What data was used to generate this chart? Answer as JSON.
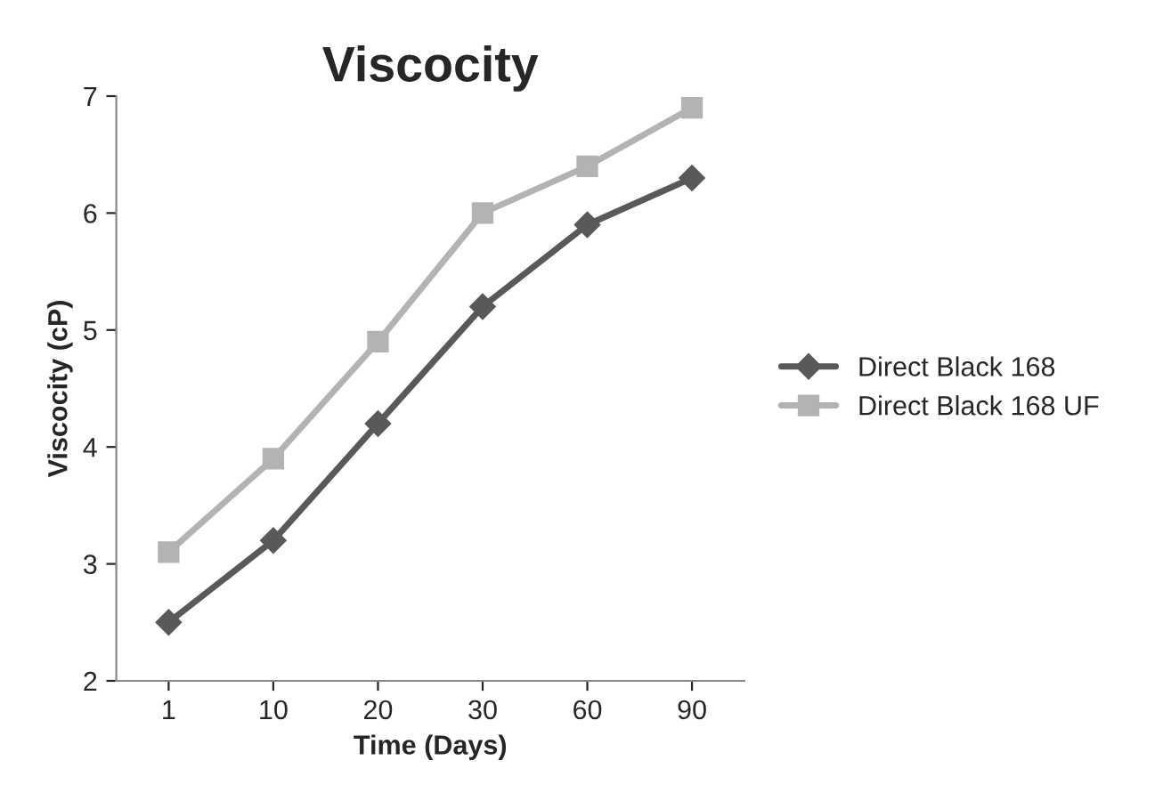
{
  "chart_data": {
    "type": "line",
    "title": "Viscocity",
    "xlabel": "Time (Days)",
    "ylabel": "Viscocity (cP)",
    "categories": [
      "1",
      "10",
      "20",
      "30",
      "60",
      "90"
    ],
    "series": [
      {
        "name": "Direct Black 168",
        "color": "#595959",
        "marker": "diamond",
        "values": [
          2.5,
          3.2,
          4.2,
          5.2,
          5.9,
          6.3
        ]
      },
      {
        "name": "Direct Black 168 UF",
        "color": "#b3b3b3",
        "marker": "square",
        "values": [
          3.1,
          3.9,
          4.9,
          6.0,
          6.4,
          6.9
        ]
      }
    ],
    "ylim": [
      2,
      7
    ],
    "yticks": [
      2,
      3,
      4,
      5,
      6,
      7
    ],
    "grid": false,
    "legend": "right",
    "line_style": "solid"
  }
}
